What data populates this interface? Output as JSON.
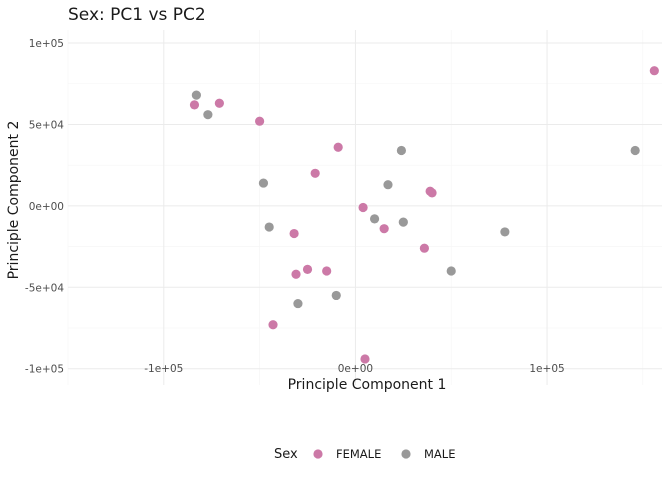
{
  "chart_data": {
    "type": "scatter",
    "title": "Sex: PC1 vs PC2",
    "xlabel": "Principle Component 1",
    "ylabel": "Principle Component 2",
    "xlim": [
      -150000,
      160000
    ],
    "ylim": [
      -110000,
      108000
    ],
    "xticks": [
      -100000,
      0,
      100000
    ],
    "xtick_labels": [
      "-1e+05",
      "0e+00",
      "1e+05"
    ],
    "yticks": [
      -100000,
      -50000,
      0,
      50000,
      100000
    ],
    "ytick_labels": [
      "-1e+05",
      "-5e+04",
      "0e+00",
      "5e+04",
      "1e+05"
    ],
    "grid": true,
    "legend": {
      "title": "Sex",
      "position": "bottom"
    },
    "series": [
      {
        "name": "FEMALE",
        "color": "#cc79a7",
        "points": [
          {
            "x": -84000,
            "y": 62000
          },
          {
            "x": -71000,
            "y": 63000
          },
          {
            "x": -50000,
            "y": 52000
          },
          {
            "x": -9000,
            "y": 36000
          },
          {
            "x": -21000,
            "y": 20000
          },
          {
            "x": -32000,
            "y": -17000
          },
          {
            "x": -25000,
            "y": -39000
          },
          {
            "x": -31000,
            "y": -42000
          },
          {
            "x": -15000,
            "y": -40000
          },
          {
            "x": -43000,
            "y": -73000
          },
          {
            "x": 4000,
            "y": -1000
          },
          {
            "x": 15000,
            "y": -14000
          },
          {
            "x": 39000,
            "y": 9000
          },
          {
            "x": 40000,
            "y": 8000
          },
          {
            "x": 36000,
            "y": -26000
          },
          {
            "x": 5000,
            "y": -94000
          },
          {
            "x": 156000,
            "y": 83000
          }
        ]
      },
      {
        "name": "MALE",
        "color": "#999999",
        "points": [
          {
            "x": -83000,
            "y": 68000
          },
          {
            "x": -77000,
            "y": 56000
          },
          {
            "x": -48000,
            "y": 14000
          },
          {
            "x": -45000,
            "y": -13000
          },
          {
            "x": -30000,
            "y": -60000
          },
          {
            "x": -10000,
            "y": -55000
          },
          {
            "x": 24000,
            "y": 34000
          },
          {
            "x": 17000,
            "y": 13000
          },
          {
            "x": 10000,
            "y": -8000
          },
          {
            "x": 25000,
            "y": -10000
          },
          {
            "x": 50000,
            "y": -40000
          },
          {
            "x": 78000,
            "y": -16000
          },
          {
            "x": 146000,
            "y": 34000
          }
        ]
      }
    ]
  }
}
